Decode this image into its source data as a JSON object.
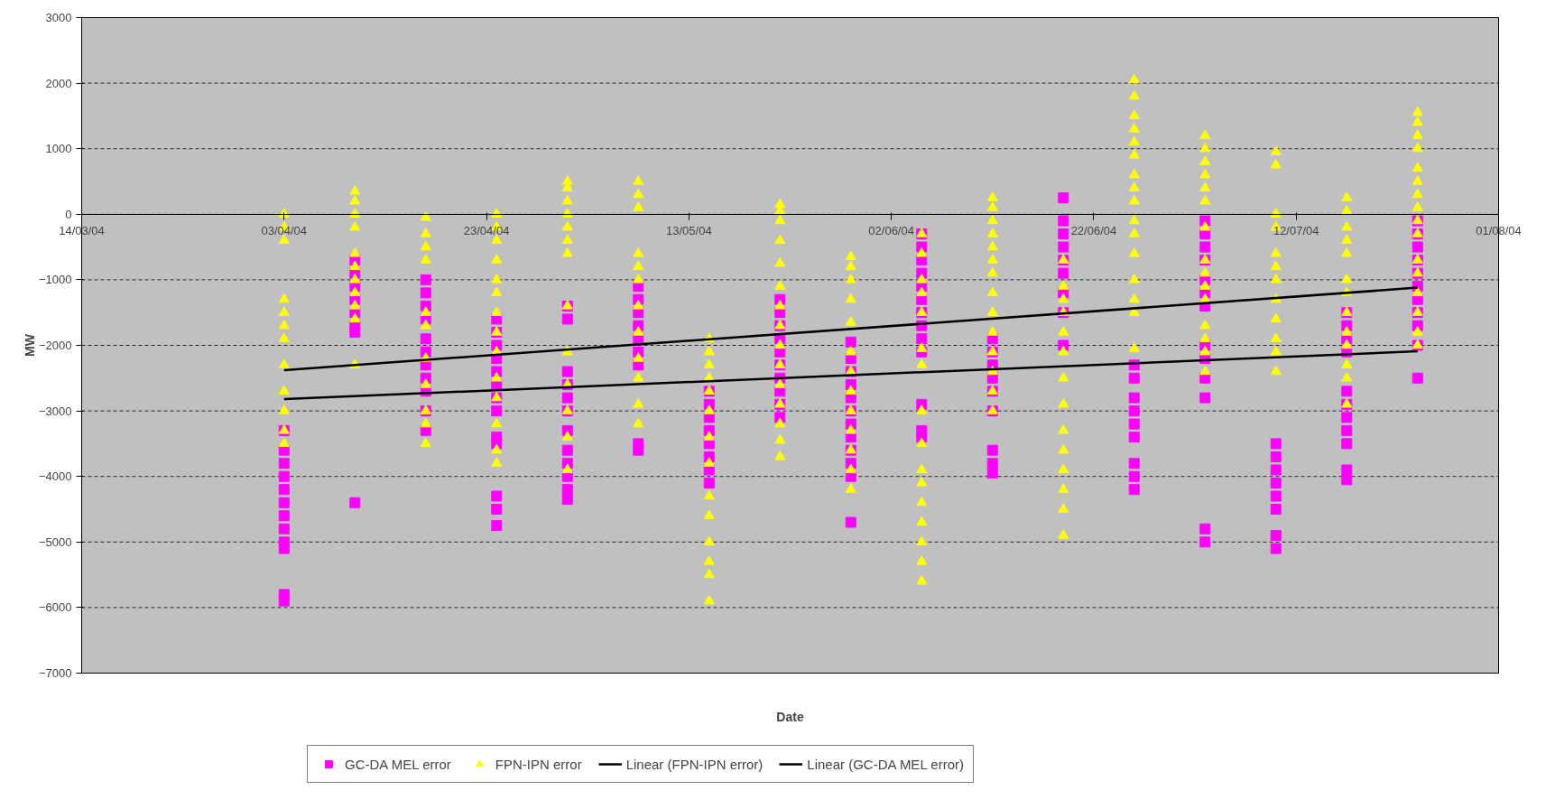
{
  "chart_data": {
    "type": "scatter",
    "xlabel": "Date",
    "ylabel": "MW",
    "xlim": [
      "2004-03-14",
      "2004-08-01"
    ],
    "xticks": [
      {
        "value": "2004-03-14",
        "label": "14/03/04"
      },
      {
        "value": "2004-04-03",
        "label": "03/04/04"
      },
      {
        "value": "2004-04-23",
        "label": "23/04/04"
      },
      {
        "value": "2004-05-13",
        "label": "13/05/04"
      },
      {
        "value": "2004-06-02",
        "label": "02/06/04"
      },
      {
        "value": "2004-06-22",
        "label": "22/06/04"
      },
      {
        "value": "2004-07-12",
        "label": "12/07/04"
      },
      {
        "value": "2004-08-01",
        "label": "01/08/04"
      }
    ],
    "ylim": [
      -7000,
      3000
    ],
    "yticks": [
      -7000,
      -6000,
      -5000,
      -4000,
      -3000,
      -2000,
      -1000,
      0,
      1000,
      2000,
      3000
    ],
    "grid": "y",
    "legend": "bottom",
    "series": [
      {
        "name": "GC-DA MEL error",
        "type": "scatter",
        "marker": "square",
        "color": "#ff00ff",
        "x": [
          "2004-04-03",
          "2004-04-03",
          "2004-04-03",
          "2004-04-03",
          "2004-04-03",
          "2004-04-03",
          "2004-04-03",
          "2004-04-03",
          "2004-04-03",
          "2004-04-03",
          "2004-04-03",
          "2004-04-03",
          "2004-04-10",
          "2004-04-10",
          "2004-04-10",
          "2004-04-10",
          "2004-04-10",
          "2004-04-10",
          "2004-04-10",
          "2004-04-10",
          "2004-04-17",
          "2004-04-17",
          "2004-04-17",
          "2004-04-17",
          "2004-04-17",
          "2004-04-17",
          "2004-04-17",
          "2004-04-17",
          "2004-04-17",
          "2004-04-17",
          "2004-04-17",
          "2004-04-24",
          "2004-04-24",
          "2004-04-24",
          "2004-04-24",
          "2004-04-24",
          "2004-04-24",
          "2004-04-24",
          "2004-04-24",
          "2004-04-24",
          "2004-04-24",
          "2004-04-24",
          "2004-04-24",
          "2004-04-24",
          "2004-05-01",
          "2004-05-01",
          "2004-05-01",
          "2004-05-01",
          "2004-05-01",
          "2004-05-01",
          "2004-05-01",
          "2004-05-01",
          "2004-05-01",
          "2004-05-01",
          "2004-05-01",
          "2004-05-01",
          "2004-05-08",
          "2004-05-08",
          "2004-05-08",
          "2004-05-08",
          "2004-05-08",
          "2004-05-08",
          "2004-05-08",
          "2004-05-08",
          "2004-05-08",
          "2004-05-15",
          "2004-05-15",
          "2004-05-15",
          "2004-05-15",
          "2004-05-15",
          "2004-05-15",
          "2004-05-15",
          "2004-05-15",
          "2004-05-22",
          "2004-05-22",
          "2004-05-22",
          "2004-05-22",
          "2004-05-22",
          "2004-05-22",
          "2004-05-22",
          "2004-05-22",
          "2004-05-22",
          "2004-05-22",
          "2004-05-29",
          "2004-05-29",
          "2004-05-29",
          "2004-05-29",
          "2004-05-29",
          "2004-05-29",
          "2004-05-29",
          "2004-05-29",
          "2004-05-29",
          "2004-05-29",
          "2004-05-29",
          "2004-05-29",
          "2004-06-05",
          "2004-06-05",
          "2004-06-05",
          "2004-06-05",
          "2004-06-05",
          "2004-06-05",
          "2004-06-05",
          "2004-06-05",
          "2004-06-05",
          "2004-06-05",
          "2004-06-05",
          "2004-06-05",
          "2004-06-05",
          "2004-06-12",
          "2004-06-12",
          "2004-06-12",
          "2004-06-12",
          "2004-06-12",
          "2004-06-12",
          "2004-06-12",
          "2004-06-12",
          "2004-06-12",
          "2004-06-19",
          "2004-06-19",
          "2004-06-19",
          "2004-06-19",
          "2004-06-19",
          "2004-06-19",
          "2004-06-19",
          "2004-06-19",
          "2004-06-19",
          "2004-06-26",
          "2004-06-26",
          "2004-06-26",
          "2004-06-26",
          "2004-06-26",
          "2004-06-26",
          "2004-06-26",
          "2004-06-26",
          "2004-06-26",
          "2004-07-03",
          "2004-07-03",
          "2004-07-03",
          "2004-07-03",
          "2004-07-03",
          "2004-07-03",
          "2004-07-03",
          "2004-07-03",
          "2004-07-03",
          "2004-07-03",
          "2004-07-03",
          "2004-07-03",
          "2004-07-03",
          "2004-07-10",
          "2004-07-10",
          "2004-07-10",
          "2004-07-10",
          "2004-07-10",
          "2004-07-10",
          "2004-07-10",
          "2004-07-10",
          "2004-07-17",
          "2004-07-17",
          "2004-07-17",
          "2004-07-17",
          "2004-07-17",
          "2004-07-17",
          "2004-07-17",
          "2004-07-17",
          "2004-07-17",
          "2004-07-17",
          "2004-07-17",
          "2004-07-24",
          "2004-07-24",
          "2004-07-24",
          "2004-07-24",
          "2004-07-24",
          "2004-07-24",
          "2004-07-24",
          "2004-07-24",
          "2004-07-24",
          "2004-07-24",
          "2004-07-24"
        ],
        "values": [
          -3300,
          -3600,
          -3800,
          -4000,
          -4200,
          -4400,
          -4600,
          -4800,
          -5000,
          -5100,
          -5800,
          -5900,
          -700,
          -900,
          -1100,
          -1300,
          -1500,
          -1700,
          -1800,
          -4400,
          -1000,
          -1200,
          -1400,
          -1600,
          -1900,
          -2100,
          -2300,
          -2500,
          -2700,
          -3000,
          -3300,
          -1600,
          -1800,
          -2000,
          -2200,
          -2400,
          -2600,
          -2800,
          -3000,
          -3400,
          -3500,
          -4300,
          -4500,
          -4750,
          -1400,
          -1600,
          -2400,
          -2600,
          -2800,
          -3000,
          -3300,
          -3600,
          -3800,
          -4000,
          -4200,
          -4350,
          -1100,
          -1300,
          -1500,
          -1700,
          -1900,
          -2100,
          -2300,
          -3500,
          -3600,
          -2700,
          -2900,
          -3100,
          -3300,
          -3500,
          -3700,
          -3900,
          -4100,
          -1300,
          -1500,
          -1700,
          -1900,
          -2100,
          -2300,
          -2500,
          -2700,
          -2900,
          -3100,
          -1950,
          -2200,
          -2400,
          -2600,
          -2800,
          -3000,
          -3200,
          -3400,
          -3600,
          -3800,
          -4000,
          -4700,
          -300,
          -500,
          -700,
          -900,
          -1100,
          -1300,
          -1500,
          -1700,
          -1900,
          -2100,
          -2900,
          -3300,
          -3400,
          -1900,
          -2100,
          -2300,
          -2500,
          -2700,
          -3000,
          -3600,
          -3800,
          -3950,
          250,
          -100,
          -300,
          -500,
          -700,
          -900,
          -1200,
          -1500,
          -2000,
          -2300,
          -2500,
          -2800,
          -3000,
          -3200,
          -3400,
          -3800,
          -4000,
          -4200,
          -100,
          -300,
          -500,
          -700,
          -1000,
          -1200,
          -1400,
          -2000,
          -2200,
          -2500,
          -2800,
          -4800,
          -5000,
          -3500,
          -3700,
          -3900,
          -4100,
          -4300,
          -4500,
          -4900,
          -5100,
          -1500,
          -1700,
          -1900,
          -2100,
          -2700,
          -2900,
          -3100,
          -3300,
          -3500,
          -3900,
          -4050,
          -100,
          -300,
          -500,
          -700,
          -900,
          -1100,
          -1300,
          -1500,
          -1700,
          -2000,
          -2500
        ]
      },
      {
        "name": "FPN-IPN error",
        "type": "scatter",
        "marker": "triangle",
        "color": "#ffff00",
        "x": [
          "2004-04-03",
          "2004-04-03",
          "2004-04-03",
          "2004-04-03",
          "2004-04-03",
          "2004-04-03",
          "2004-04-03",
          "2004-04-03",
          "2004-04-03",
          "2004-04-03",
          "2004-04-03",
          "2004-04-03",
          "2004-04-10",
          "2004-04-10",
          "2004-04-10",
          "2004-04-10",
          "2004-04-10",
          "2004-04-10",
          "2004-04-10",
          "2004-04-10",
          "2004-04-10",
          "2004-04-10",
          "2004-04-10",
          "2004-04-17",
          "2004-04-17",
          "2004-04-17",
          "2004-04-17",
          "2004-04-17",
          "2004-04-17",
          "2004-04-17",
          "2004-04-17",
          "2004-04-17",
          "2004-04-17",
          "2004-04-17",
          "2004-04-24",
          "2004-04-24",
          "2004-04-24",
          "2004-04-24",
          "2004-04-24",
          "2004-04-24",
          "2004-04-24",
          "2004-04-24",
          "2004-04-24",
          "2004-04-24",
          "2004-04-24",
          "2004-04-24",
          "2004-04-24",
          "2004-04-24",
          "2004-05-01",
          "2004-05-01",
          "2004-05-01",
          "2004-05-01",
          "2004-05-01",
          "2004-05-01",
          "2004-05-01",
          "2004-05-01",
          "2004-05-01",
          "2004-05-01",
          "2004-05-01",
          "2004-05-01",
          "2004-05-01",
          "2004-05-08",
          "2004-05-08",
          "2004-05-08",
          "2004-05-08",
          "2004-05-08",
          "2004-05-08",
          "2004-05-08",
          "2004-05-08",
          "2004-05-08",
          "2004-05-08",
          "2004-05-08",
          "2004-05-08",
          "2004-05-15",
          "2004-05-15",
          "2004-05-15",
          "2004-05-15",
          "2004-05-15",
          "2004-05-15",
          "2004-05-15",
          "2004-05-15",
          "2004-05-15",
          "2004-05-15",
          "2004-05-15",
          "2004-05-15",
          "2004-05-15",
          "2004-05-15",
          "2004-05-22",
          "2004-05-22",
          "2004-05-22",
          "2004-05-22",
          "2004-05-22",
          "2004-05-22",
          "2004-05-22",
          "2004-05-22",
          "2004-05-22",
          "2004-05-22",
          "2004-05-22",
          "2004-05-22",
          "2004-05-22",
          "2004-05-22",
          "2004-05-22",
          "2004-05-29",
          "2004-05-29",
          "2004-05-29",
          "2004-05-29",
          "2004-05-29",
          "2004-05-29",
          "2004-05-29",
          "2004-05-29",
          "2004-05-29",
          "2004-05-29",
          "2004-05-29",
          "2004-05-29",
          "2004-05-29",
          "2004-06-05",
          "2004-06-05",
          "2004-06-05",
          "2004-06-05",
          "2004-06-05",
          "2004-06-05",
          "2004-06-05",
          "2004-06-05",
          "2004-06-05",
          "2004-06-05",
          "2004-06-05",
          "2004-06-05",
          "2004-06-05",
          "2004-06-05",
          "2004-06-05",
          "2004-06-05",
          "2004-06-12",
          "2004-06-12",
          "2004-06-12",
          "2004-06-12",
          "2004-06-12",
          "2004-06-12",
          "2004-06-12",
          "2004-06-12",
          "2004-06-12",
          "2004-06-12",
          "2004-06-12",
          "2004-06-12",
          "2004-06-12",
          "2004-06-12",
          "2004-06-19",
          "2004-06-19",
          "2004-06-19",
          "2004-06-19",
          "2004-06-19",
          "2004-06-19",
          "2004-06-19",
          "2004-06-19",
          "2004-06-19",
          "2004-06-19",
          "2004-06-19",
          "2004-06-19",
          "2004-06-19",
          "2004-06-19",
          "2004-06-26",
          "2004-06-26",
          "2004-06-26",
          "2004-06-26",
          "2004-06-26",
          "2004-06-26",
          "2004-06-26",
          "2004-06-26",
          "2004-06-26",
          "2004-06-26",
          "2004-06-26",
          "2004-06-26",
          "2004-06-26",
          "2004-06-26",
          "2004-06-26",
          "2004-06-26",
          "2004-07-03",
          "2004-07-03",
          "2004-07-03",
          "2004-07-03",
          "2004-07-03",
          "2004-07-03",
          "2004-07-03",
          "2004-07-03",
          "2004-07-03",
          "2004-07-03",
          "2004-07-03",
          "2004-07-03",
          "2004-07-03",
          "2004-07-03",
          "2004-07-03",
          "2004-07-10",
          "2004-07-10",
          "2004-07-10",
          "2004-07-10",
          "2004-07-10",
          "2004-07-10",
          "2004-07-10",
          "2004-07-10",
          "2004-07-10",
          "2004-07-10",
          "2004-07-10",
          "2004-07-10",
          "2004-07-17",
          "2004-07-17",
          "2004-07-17",
          "2004-07-17",
          "2004-07-17",
          "2004-07-17",
          "2004-07-17",
          "2004-07-17",
          "2004-07-17",
          "2004-07-17",
          "2004-07-17",
          "2004-07-17",
          "2004-07-17",
          "2004-07-24",
          "2004-07-24",
          "2004-07-24",
          "2004-07-24",
          "2004-07-24",
          "2004-07-24",
          "2004-07-24",
          "2004-07-24",
          "2004-07-24",
          "2004-07-24",
          "2004-07-24",
          "2004-07-24",
          "2004-07-24",
          "2004-07-24",
          "2004-07-24",
          "2004-07-24"
        ],
        "values": [
          0,
          -200,
          -400,
          -1300,
          -1500,
          -1700,
          -1900,
          -2300,
          -2700,
          -3000,
          -3300,
          -3500,
          350,
          200,
          0,
          -200,
          -600,
          -800,
          -1000,
          -1200,
          -1400,
          -1600,
          -2300,
          -50,
          -300,
          -500,
          -700,
          -1500,
          -1700,
          -2200,
          -2600,
          -3000,
          -3200,
          -3500,
          0,
          -200,
          -400,
          -700,
          -1000,
          -1200,
          -1500,
          -1800,
          -2100,
          -2500,
          -2800,
          -3200,
          -3600,
          -3800,
          500,
          400,
          200,
          0,
          -200,
          -400,
          -600,
          -1400,
          -2100,
          -2600,
          -3000,
          -3400,
          -3900,
          500,
          300,
          100,
          -600,
          -800,
          -1000,
          -1400,
          -1800,
          -2200,
          -2500,
          -2900,
          -3200,
          -1900,
          -2100,
          -2300,
          -2500,
          -2700,
          -3000,
          -3400,
          -3800,
          -4300,
          -4600,
          -5000,
          -5300,
          -5500,
          -5900,
          150,
          50,
          -100,
          -400,
          -750,
          -1100,
          -1400,
          -1700,
          -2000,
          -2300,
          -2600,
          -2900,
          -3200,
          -3450,
          -3700,
          -650,
          -800,
          -1000,
          -1300,
          -1650,
          -2100,
          -2400,
          -2700,
          -3000,
          -3300,
          -3600,
          -3900,
          -4200,
          -300,
          -600,
          -1000,
          -1200,
          -1500,
          -2050,
          -2300,
          -3000,
          -3500,
          -3900,
          -4100,
          -4400,
          -4700,
          -5000,
          -5300,
          -5600,
          250,
          100,
          -100,
          -300,
          -500,
          -700,
          -900,
          -1200,
          -1500,
          -1800,
          -2100,
          -2400,
          -2700,
          -3000,
          -700,
          -1100,
          -1300,
          -1500,
          -1800,
          -2100,
          -2500,
          -2900,
          -3300,
          -3600,
          -3900,
          -4200,
          -4500,
          -4900,
          2050,
          1800,
          1500,
          1300,
          1100,
          900,
          600,
          400,
          200,
          -100,
          -300,
          -600,
          -1000,
          -1300,
          -1500,
          -2050,
          1200,
          1000,
          800,
          600,
          400,
          200,
          -200,
          -700,
          -900,
          -1100,
          -1300,
          -1700,
          -1900,
          -2100,
          -2400,
          950,
          750,
          0,
          -200,
          -600,
          -800,
          -1000,
          -1300,
          -1600,
          -1900,
          -2100,
          -2400,
          250,
          50,
          -200,
          -400,
          -600,
          -1000,
          -1200,
          -1500,
          -1800,
          -2000,
          -2300,
          -2500,
          -2900,
          1550,
          1400,
          1200,
          1000,
          700,
          500,
          300,
          100,
          -100,
          -300,
          -700,
          -900,
          -1200,
          -1500,
          -1800,
          -2000
        ]
      },
      {
        "name": "Linear (FPN-IPN error)",
        "type": "line",
        "line_style": "solid",
        "color": "#000000",
        "x": [
          "2004-04-03",
          "2004-07-24"
        ],
        "values": [
          -2380,
          -1120
        ]
      },
      {
        "name": "Linear (GC-DA MEL error)",
        "type": "line",
        "line_style": "solid",
        "color": "#000000",
        "x": [
          "2004-04-03",
          "2004-07-24"
        ],
        "values": [
          -2820,
          -2090
        ]
      }
    ]
  }
}
